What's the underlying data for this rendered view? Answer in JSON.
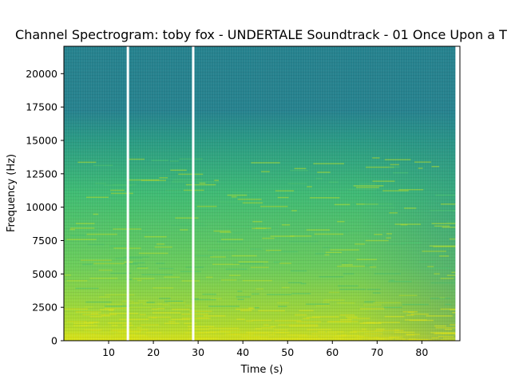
{
  "chart_data": {
    "type": "heatmap",
    "title": "Channel Spectrogram: toby fox - UNDERTALE Soundtrack - 01 Once Upon a T",
    "xlabel": "Time (s)",
    "ylabel": "Frequency (Hz)",
    "xlim": [
      0,
      88.5
    ],
    "ylim": [
      0,
      22050
    ],
    "x_ticks": [
      10,
      20,
      30,
      40,
      50,
      60,
      70,
      80
    ],
    "y_ticks": [
      0,
      2500,
      5000,
      7500,
      10000,
      12500,
      15000,
      17500,
      20000
    ],
    "data_extent_x": [
      0,
      87.5
    ],
    "gaps_s": [
      14.3,
      28.9
    ],
    "colormap": "viridis",
    "colors": {
      "background_high_freq": "#26828e",
      "mid": "#2a9b84",
      "high_energy": "#b3dc2b",
      "peak": "#d8e219"
    },
    "grid": false
  }
}
